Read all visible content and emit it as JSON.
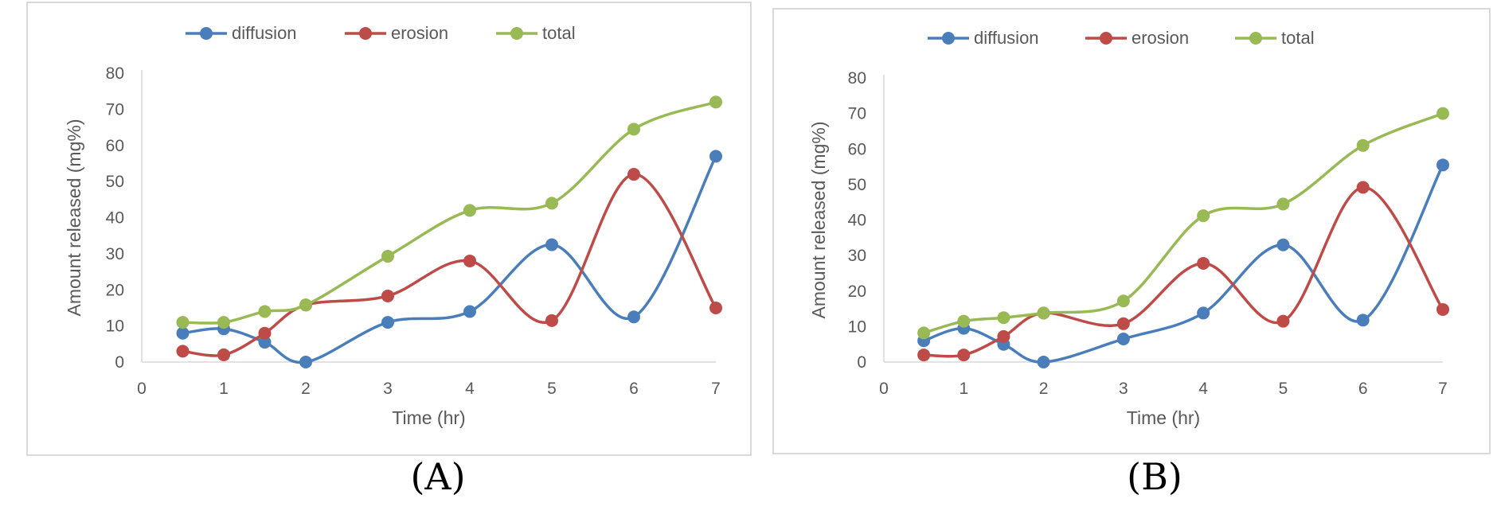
{
  "chart_data": [
    {
      "type": "line",
      "caption": "(A)",
      "xlabel": "Time (hr)",
      "ylabel": "Amount released (mg%)",
      "xlim": [
        0,
        7
      ],
      "ylim": [
        0,
        80
      ],
      "xticks": [
        "0",
        "1",
        "2",
        "3",
        "4",
        "5",
        "6",
        "7"
      ],
      "yticks": [
        "0",
        "10",
        "20",
        "30",
        "40",
        "50",
        "60",
        "70",
        "80"
      ],
      "legend_position": "top",
      "x": [
        0.5,
        1,
        1.5,
        2,
        3,
        4,
        5,
        6,
        7
      ],
      "series": [
        {
          "name": "diffusion",
          "color": "#4a7ebb",
          "values": [
            8,
            9.2,
            5.5,
            0,
            11,
            14,
            32.5,
            12.5,
            57
          ]
        },
        {
          "name": "erosion",
          "color": "#be4b48",
          "values": [
            3,
            2,
            8,
            15.8,
            18.3,
            28,
            11.5,
            52,
            15
          ]
        },
        {
          "name": "total",
          "color": "#98b954",
          "values": [
            11,
            11,
            14,
            15.8,
            29.3,
            42,
            44,
            64.5,
            72
          ]
        }
      ]
    },
    {
      "type": "line",
      "caption": "(B)",
      "xlabel": "Time (hr)",
      "ylabel": "Amount released (mg%)",
      "xlim": [
        0,
        7
      ],
      "ylim": [
        0,
        80
      ],
      "xticks": [
        "0",
        "1",
        "2",
        "3",
        "4",
        "5",
        "6",
        "7"
      ],
      "yticks": [
        "0",
        "10",
        "20",
        "30",
        "40",
        "50",
        "60",
        "70",
        "80"
      ],
      "legend_position": "top",
      "x": [
        0.5,
        1,
        1.5,
        2,
        3,
        4,
        5,
        6,
        7
      ],
      "series": [
        {
          "name": "diffusion",
          "color": "#4a7ebb",
          "values": [
            6,
            9.5,
            5,
            0,
            6.5,
            13.8,
            33,
            11.8,
            55.5
          ]
        },
        {
          "name": "erosion",
          "color": "#be4b48",
          "values": [
            2,
            2,
            7.2,
            13.8,
            10.8,
            27.8,
            11.5,
            49.2,
            14.8
          ]
        },
        {
          "name": "total",
          "color": "#98b954",
          "values": [
            8.2,
            11.5,
            12.5,
            13.8,
            17.2,
            41.2,
            44.5,
            61,
            70
          ]
        }
      ]
    }
  ]
}
